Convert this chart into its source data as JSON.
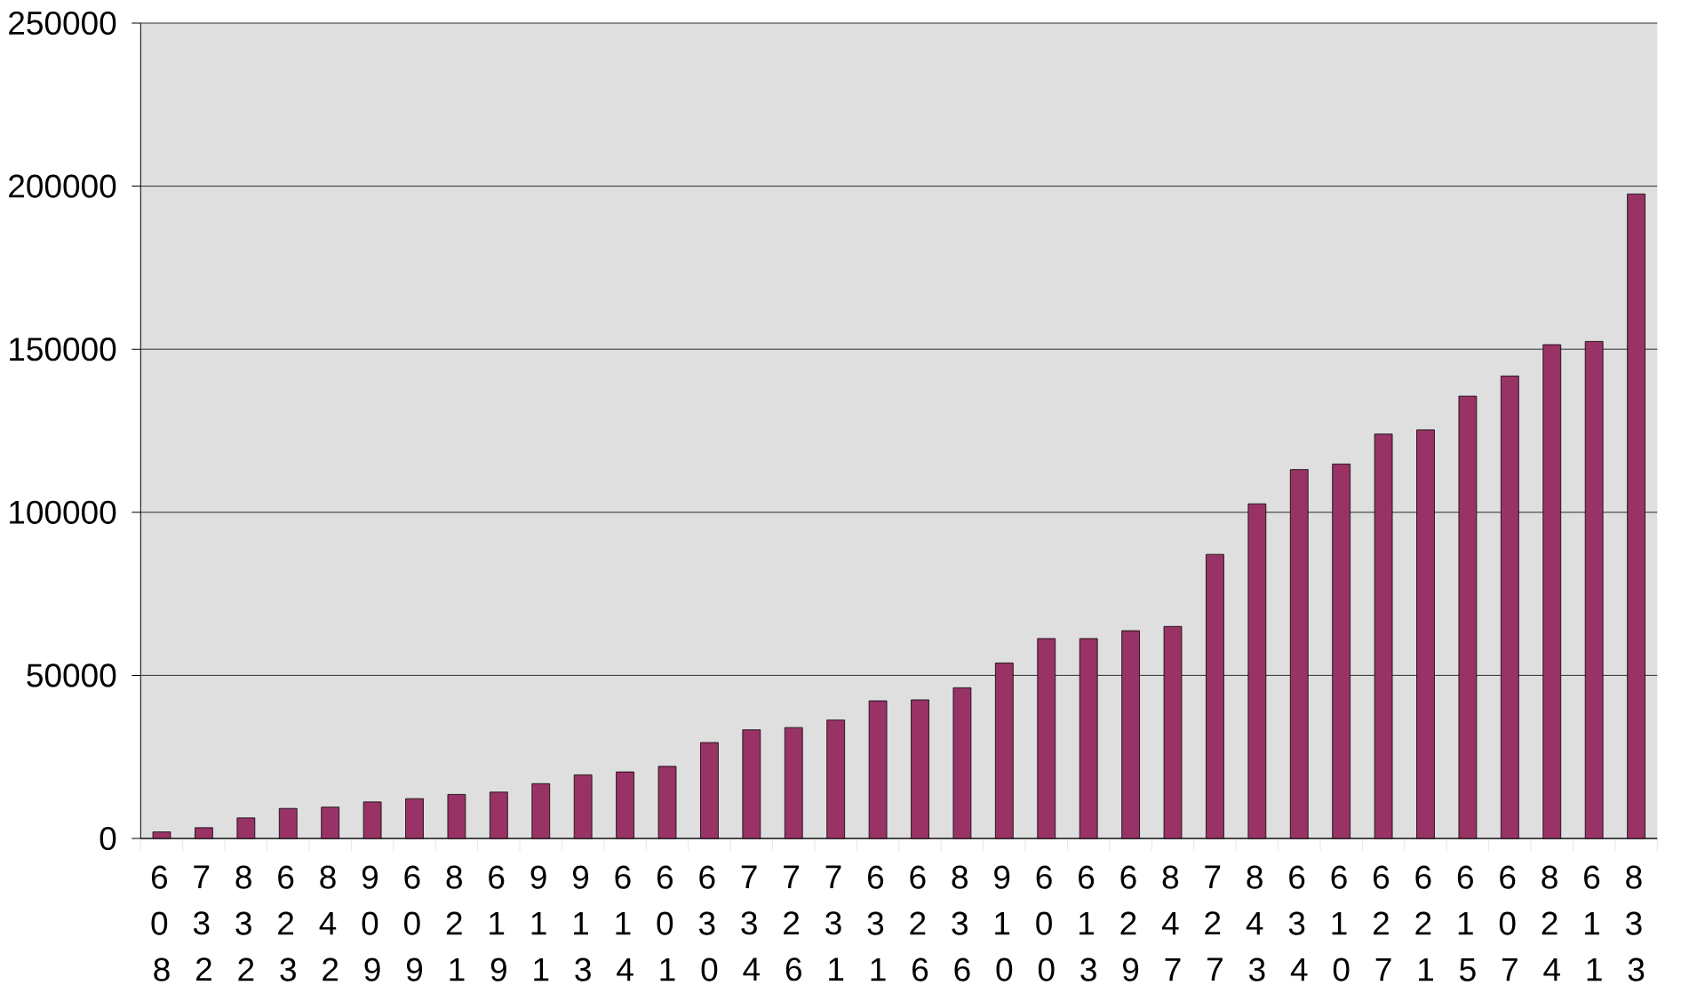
{
  "chart_data": {
    "type": "bar",
    "categories": [
      "608",
      "732",
      "832",
      "623",
      "842",
      "909",
      "609",
      "821",
      "619",
      "911",
      "913",
      "614",
      "601",
      "630",
      "734",
      "726",
      "731",
      "631",
      "626",
      "836",
      "910",
      "600",
      "613",
      "629",
      "847",
      "727",
      "843",
      "634",
      "610",
      "627",
      "621",
      "615",
      "607",
      "824",
      "611",
      "833"
    ],
    "values": [
      2000,
      3300,
      6300,
      9200,
      9600,
      11200,
      12200,
      13500,
      14200,
      16800,
      19500,
      20400,
      22100,
      29400,
      33300,
      34000,
      36300,
      42200,
      42500,
      46200,
      53800,
      61300,
      61300,
      63700,
      65000,
      87100,
      102600,
      113100,
      114800,
      124000,
      125300,
      135600,
      141800,
      151400,
      152400,
      197600
    ],
    "color": "#993366",
    "ylim": [
      0,
      250000
    ],
    "yticks": [
      0,
      50000,
      100000,
      150000,
      200000,
      250000
    ],
    "grid": "y"
  }
}
